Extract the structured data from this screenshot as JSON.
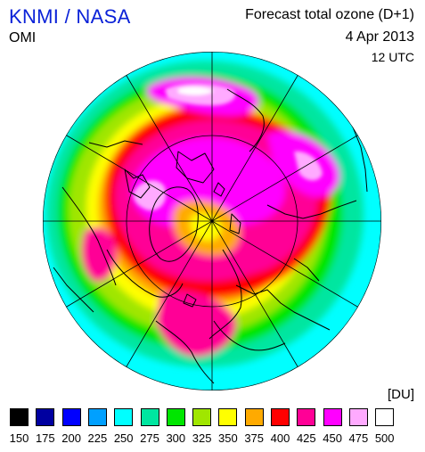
{
  "header": {
    "organization": "KNMI / NASA",
    "instrument": "OMI",
    "product": "Forecast total ozone (D+1)",
    "date": "4 Apr 2013",
    "time": "12 UTC"
  },
  "legend": {
    "unit": "[DU]",
    "bins": [
      {
        "label": "150",
        "color": "#000000"
      },
      {
        "label": "175",
        "color": "#0000a0"
      },
      {
        "label": "200",
        "color": "#0000ff"
      },
      {
        "label": "225",
        "color": "#00a0ff"
      },
      {
        "label": "250",
        "color": "#00ffff"
      },
      {
        "label": "275",
        "color": "#00e6a0"
      },
      {
        "label": "300",
        "color": "#00e600"
      },
      {
        "label": "325",
        "color": "#a0e600"
      },
      {
        "label": "350",
        "color": "#ffff00"
      },
      {
        "label": "375",
        "color": "#ffaa00"
      },
      {
        "label": "400",
        "color": "#ff0000"
      },
      {
        "label": "425",
        "color": "#ff0096"
      },
      {
        "label": "450",
        "color": "#ff00ff"
      },
      {
        "label": "475",
        "color": "#ffaaff"
      },
      {
        "label": "500",
        "color": "#ffffff"
      }
    ]
  },
  "map": {
    "projection": "polar-stereographic-north",
    "fill_colors": {
      "outer_ring": "#00ffff",
      "teal": "#00e6a0",
      "green": "#00e600",
      "yellow_green": "#a0e600",
      "yellow": "#ffff00",
      "orange": "#ffaa00",
      "red": "#ff0000",
      "magenta": "#ff0096",
      "violet": "#ff00ff",
      "pink": "#ffaaff",
      "white": "#ffffff"
    },
    "overlay_color": "#000000"
  }
}
